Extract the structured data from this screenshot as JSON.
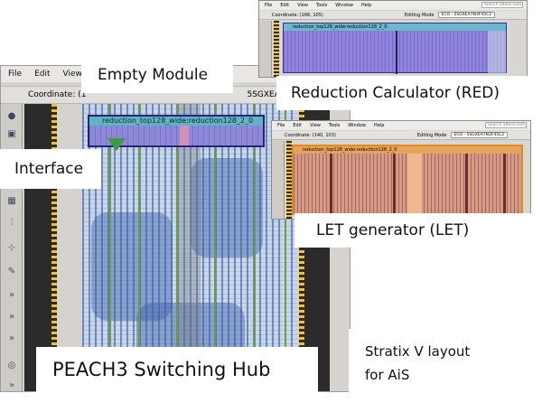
{
  "main_window": {
    "menu": [
      "File",
      "Edit",
      "View"
    ],
    "coordinate_label": "Coordinate: (1",
    "partial_text": "5SGXEA",
    "module_title": "reduction_top128_wide:reduction128_2_0"
  },
  "red_window": {
    "menu": [
      "File",
      "Edit",
      "View",
      "Tools",
      "Window",
      "Help"
    ],
    "search_placeholder": "Search altera.com",
    "coordinate": "Coordinate: (166, 105)",
    "editing_mode_label": "Editing Mode",
    "editing_mode_value": "ECO - 5SGXEA7N3F45C2",
    "module_title": "reduction_top128_wide:reduction128_2_0"
  },
  "let_window": {
    "menu": [
      "File",
      "Edit",
      "View",
      "Tools",
      "Window",
      "Help"
    ],
    "search_placeholder": "Search altera.com",
    "coordinate": "Coordinate: (140, 103)",
    "editing_mode_label": "Editing Mode",
    "editing_mode_value": "ECO - 5SGXEA7N3F45C2",
    "module_title": "reduction_top128_wide:reduction128_2_0"
  },
  "labels": {
    "empty_module": "Empty Module",
    "interface": "Interface",
    "red": "Reduction Calculator (RED)",
    "let": "LET generator (LET)",
    "hub": "PEACH3 Switching Hub",
    "stratix_line1": "Stratix V layout",
    "stratix_line2": "for AiS"
  },
  "colors": {
    "fabric": "#c8d7ec",
    "module": "#8e88d8",
    "red_region": "#8f84dc",
    "let_region": "#d69a84",
    "let_border": "#e48a1c",
    "interface_marker": "#3d9a3d"
  },
  "icons": [
    "search-icon",
    "floorplan-icon",
    "hand-icon",
    "layer-icon",
    "zoom-icon"
  ]
}
